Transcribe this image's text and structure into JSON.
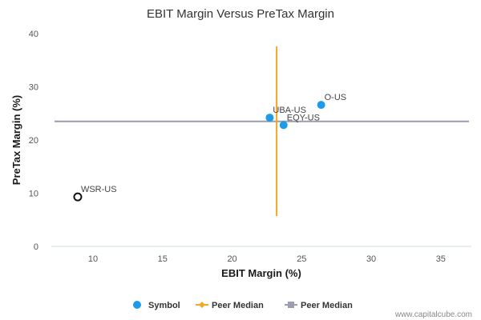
{
  "chart_data": {
    "type": "scatter",
    "title": "EBIT Margin Versus PreTax Margin",
    "xlabel": "EBIT Margin (%)",
    "ylabel": "PreTax Margin (%)",
    "xlim": [
      7,
      37.2
    ],
    "ylim": [
      0,
      40
    ],
    "xticks": [
      10,
      15,
      20,
      25,
      30,
      35
    ],
    "yticks": [
      0,
      10,
      20,
      30,
      40
    ],
    "grid": false,
    "legend_position": "bottom",
    "points": [
      {
        "label": "O-US",
        "x": 26.4,
        "y": 26.6,
        "style": "filled"
      },
      {
        "label": "UBA-US",
        "x": 22.7,
        "y": 24.2,
        "style": "filled"
      },
      {
        "label": "EQY-US",
        "x": 23.7,
        "y": 22.8,
        "style": "filled"
      },
      {
        "label": "WSR-US",
        "x": 8.9,
        "y": 9.3,
        "style": "hollow"
      }
    ],
    "peer_median_x": {
      "value": 23.2,
      "y_range": [
        5.7,
        37.6
      ]
    },
    "peer_median_y": {
      "value": 23.5
    },
    "legend": [
      {
        "label": "Symbol",
        "kind": "dot"
      },
      {
        "label": "Peer Median",
        "kind": "vertical-median"
      },
      {
        "label": "Peer Median",
        "kind": "horizontal-median"
      }
    ],
    "colors": {
      "point": "#1e9be8",
      "hollow_stroke": "#111111",
      "vertical_median": "#f5a623",
      "horizontal_median": "#9a9caf",
      "axis": "#cfdcdc"
    }
  },
  "footer": "www.capitalcube.com"
}
